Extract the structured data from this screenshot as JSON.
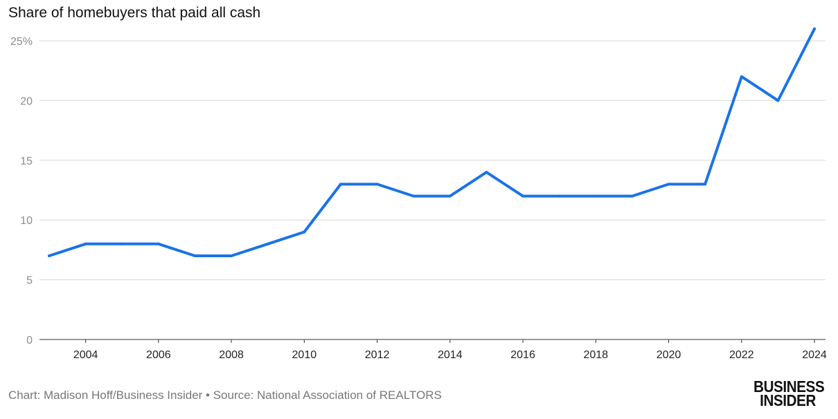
{
  "chart_data": {
    "type": "line",
    "title": "Share of homebuyers that paid all cash",
    "xlabel": "",
    "ylabel": "",
    "x": [
      2003,
      2004,
      2005,
      2006,
      2007,
      2008,
      2009,
      2010,
      2011,
      2012,
      2013,
      2014,
      2015,
      2016,
      2017,
      2018,
      2019,
      2020,
      2021,
      2022,
      2023,
      2024
    ],
    "series": [
      {
        "values": [
          7,
          8,
          8,
          8,
          7,
          7,
          8,
          9,
          13,
          13,
          12,
          12,
          14,
          12,
          12,
          12,
          12,
          13,
          13,
          22,
          20,
          26
        ]
      }
    ],
    "ylim": [
      0,
      25
    ],
    "y_ticks": [
      "0",
      "5",
      "10",
      "15",
      "20",
      "25%"
    ],
    "y_tick_values": [
      0,
      5,
      10,
      15,
      20,
      25
    ],
    "x_ticks": [
      "2004",
      "2006",
      "2008",
      "2010",
      "2012",
      "2014",
      "2016",
      "2018",
      "2020",
      "2022",
      "2024"
    ],
    "x_tick_values": [
      2004,
      2006,
      2008,
      2010,
      2012,
      2014,
      2016,
      2018,
      2020,
      2022,
      2024
    ],
    "grid": true,
    "line_color": "#1a73e8"
  },
  "footer": "Chart: Madison Hoff/Business Insider • Source: National Association of REALTORS",
  "logo": {
    "line1": "BUSINESS",
    "line2": "INSIDER"
  }
}
